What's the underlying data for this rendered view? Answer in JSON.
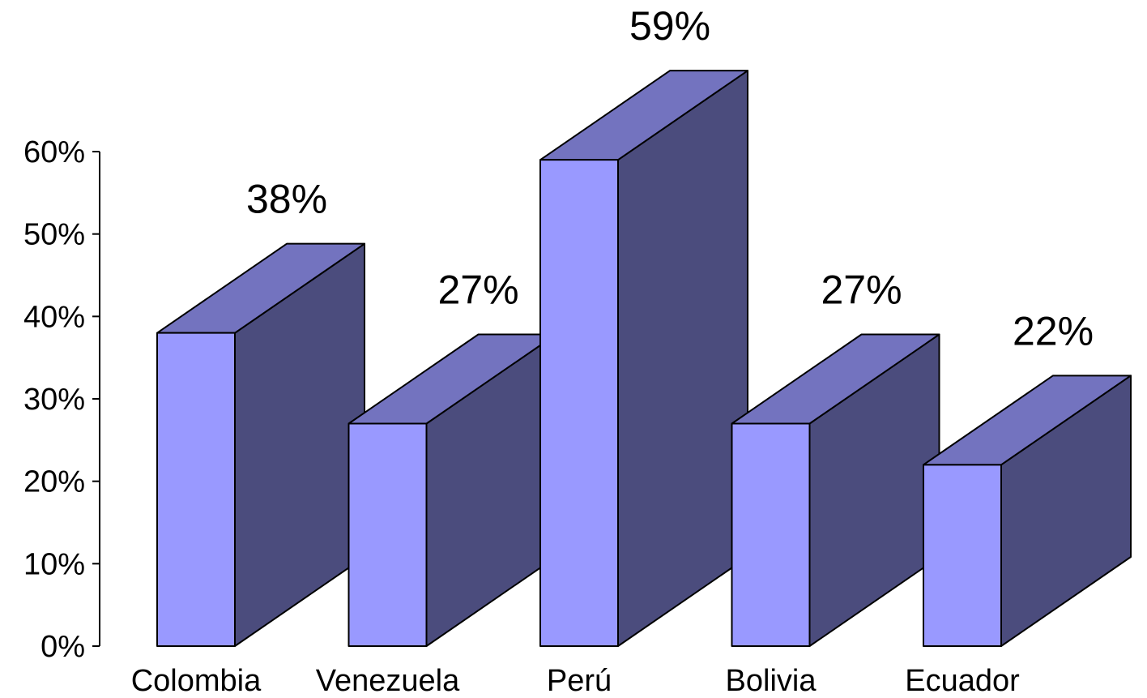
{
  "chart_data": {
    "type": "bar",
    "title": "",
    "xlabel": "",
    "ylabel": "",
    "categories": [
      "Colombia",
      "Venezuela",
      "Perú",
      "Bolivia",
      "Ecuador"
    ],
    "values": [
      38,
      27,
      59,
      27,
      22
    ],
    "data_labels": [
      "38%",
      "27%",
      "59%",
      "27%",
      "22%"
    ],
    "ylim": [
      0,
      60
    ],
    "y_ticks": [
      "0%",
      "10%",
      "20%",
      "30%",
      "40%",
      "50%",
      "60%"
    ],
    "grid": false,
    "legend": "none",
    "colors": {
      "front": "#9999ff",
      "top": "#7373bf",
      "side": "#4b4c7d"
    }
  }
}
